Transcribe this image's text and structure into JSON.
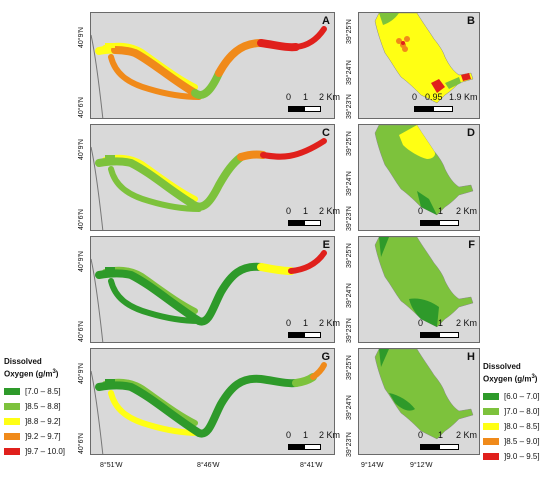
{
  "colors": {
    "land": "#d9d9d9",
    "dark_green": "#2e9a2a",
    "light_green": "#7dc23c",
    "yellow": "#ffff14",
    "orange": "#f08a1a",
    "red": "#e0201c"
  },
  "legend_left": {
    "title_line1": "Dissolved",
    "title_line2": "Oxygen  (g/m",
    "title_sup": "3",
    "title_end": ")",
    "items": [
      {
        "label": "[7.0 – 8.5]",
        "color": "#2e9a2a"
      },
      {
        "label": "]8.5 – 8.8]",
        "color": "#7dc23c"
      },
      {
        "label": "]8.8 – 9.2]",
        "color": "#ffff14"
      },
      {
        "label": "]9.2 – 9.7]",
        "color": "#f08a1a"
      },
      {
        "label": "]9.7 – 10.0]",
        "color": "#e0201c"
      }
    ]
  },
  "legend_right": {
    "title_line1": "Dissolved",
    "title_line2": "Oxygen  (g/m",
    "title_sup": "3",
    "title_end": ")",
    "items": [
      {
        "label": "[6.0 – 7.0]",
        "color": "#2e9a2a"
      },
      {
        "label": "]7.0 – 8.0]",
        "color": "#7dc23c"
      },
      {
        "label": "]8.0 – 8.5]",
        "color": "#ffff14"
      },
      {
        "label": "]8.5 – 9.0]",
        "color": "#f08a1a"
      },
      {
        "label": "]9.0 – 9.5]",
        "color": "#e0201c"
      }
    ]
  },
  "panels": {
    "A": {
      "label": "A"
    },
    "B": {
      "label": "B"
    },
    "C": {
      "label": "C"
    },
    "D": {
      "label": "D"
    },
    "E": {
      "label": "E"
    },
    "F": {
      "label": "F"
    },
    "G": {
      "label": "G"
    },
    "H": {
      "label": "H"
    }
  },
  "scalebars": {
    "A": [
      "0",
      "1",
      "2 Km"
    ],
    "B": [
      "0",
      "0.95",
      "1.9 Km"
    ],
    "C": [
      "0",
      "1",
      "2 Km"
    ],
    "D": [
      "0",
      "1",
      "2 Km"
    ],
    "E": [
      "0",
      "1",
      "2 Km"
    ],
    "F": [
      "0",
      "1",
      "2 Km"
    ],
    "G": [
      "0",
      "1",
      "2 Km"
    ],
    "H": [
      "0",
      "1",
      "2 Km"
    ]
  },
  "left_lat_labels": {
    "A": [
      "40°9'N",
      "40°6'N"
    ],
    "C": [
      "40°9'N",
      "40°6'N"
    ],
    "E": [
      "40°9'N",
      "40°6'N"
    ],
    "G": [
      "40°9'N",
      "40°6'N"
    ]
  },
  "right_lat_labels": {
    "B": [
      "39°25'N",
      "39°24'N",
      "39°23'N"
    ],
    "D": [
      "39°25'N",
      "39°24'N",
      "39°23'N"
    ],
    "F": [
      "39°25'N",
      "39°24'N",
      "39°23'N"
    ],
    "H": [
      "39°25'N",
      "39°24'N",
      "39°23'N"
    ]
  },
  "left_lon_labels": [
    "8°51'W",
    "8°46'W",
    "8°41'W"
  ],
  "right_lon_labels": [
    "9°14'W",
    "9°12'W"
  ]
}
